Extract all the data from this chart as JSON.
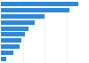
{
  "values": [
    4260,
    3750,
    2400,
    1850,
    1500,
    1300,
    1150,
    1050,
    700,
    280
  ],
  "bar_color": "#2f88d4",
  "background_color": "#ffffff",
  "xlim": [
    0,
    4800
  ],
  "grid_color": "#cccccc",
  "bar_height": 0.72,
  "figsize": [
    1.0,
    0.71
  ],
  "dpi": 100
}
